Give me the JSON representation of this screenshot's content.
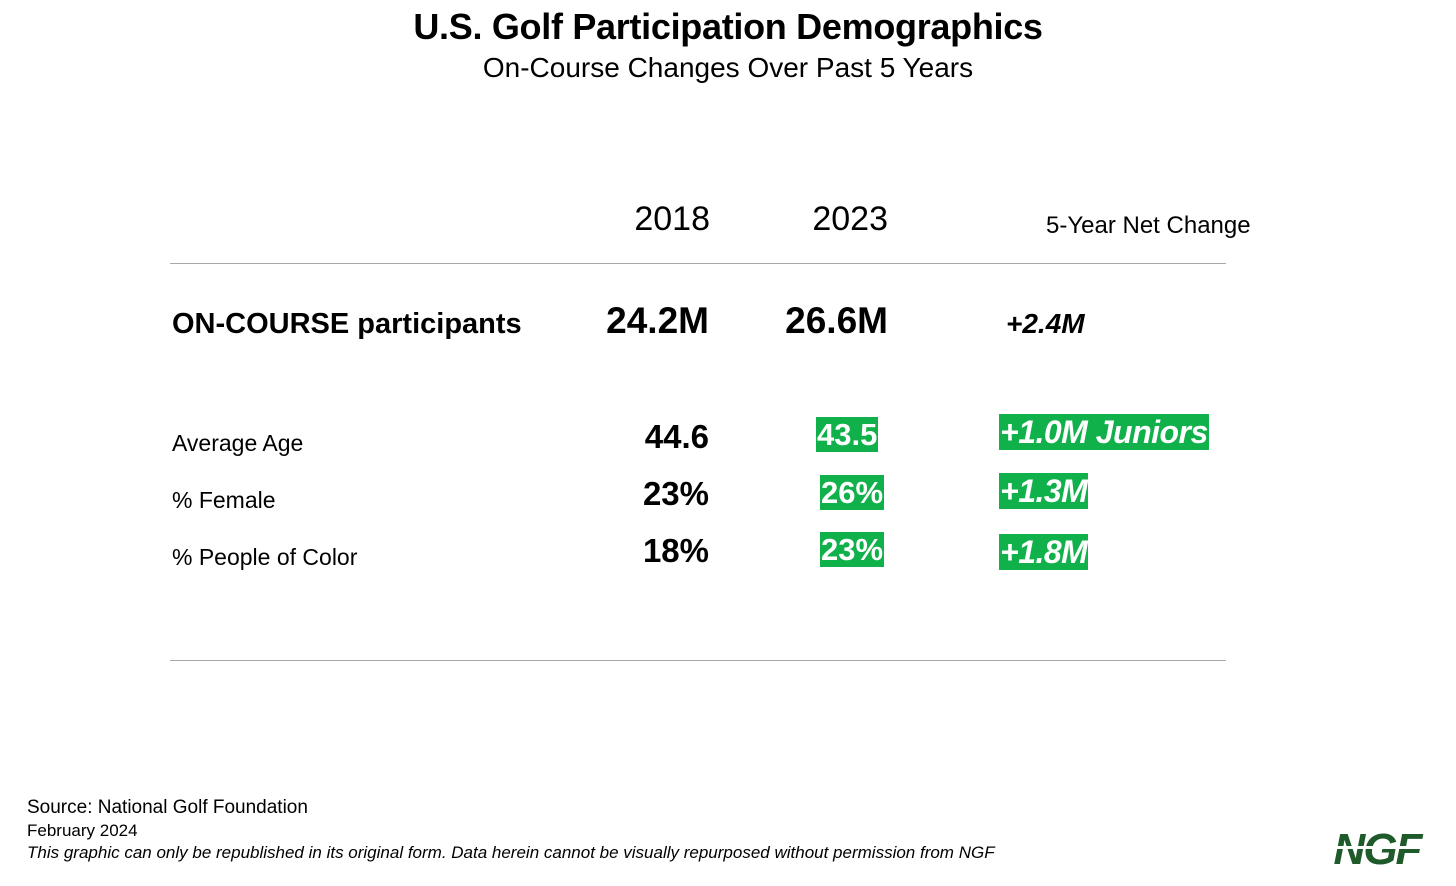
{
  "title": "U.S. Golf Participation Demographics",
  "subtitle": "On-Course Changes Over Past 5 Years",
  "columns": {
    "year1": "2018",
    "year2": "2023",
    "net": "5-Year Net Change"
  },
  "main_row": {
    "label": "ON-COURSE participants",
    "v2018": "24.2M",
    "v2023": "26.6M",
    "net": "+2.4M"
  },
  "rows": [
    {
      "label": "Average Age",
      "v2018": "44.6",
      "v2023": "43.5",
      "net": "+1.0M Juniors"
    },
    {
      "label": "% Female",
      "v2018": "23%",
      "v2023": "26%",
      "net": "+1.3M"
    },
    {
      "label": "% People of Color",
      "v2018": "18%",
      "v2023": "23%",
      "net": "+1.8M"
    }
  ],
  "footer": {
    "source": "Source: National Golf Foundation",
    "date": "February 2024",
    "disclaimer": "This graphic can only be republished in its original form. Data herein cannot be visually repurposed without permission from NGF"
  },
  "logo": {
    "text": "NGF",
    "color": "#1f5a2a"
  },
  "colors": {
    "highlight": "#10b04a",
    "rule": "#a8a8a8"
  }
}
